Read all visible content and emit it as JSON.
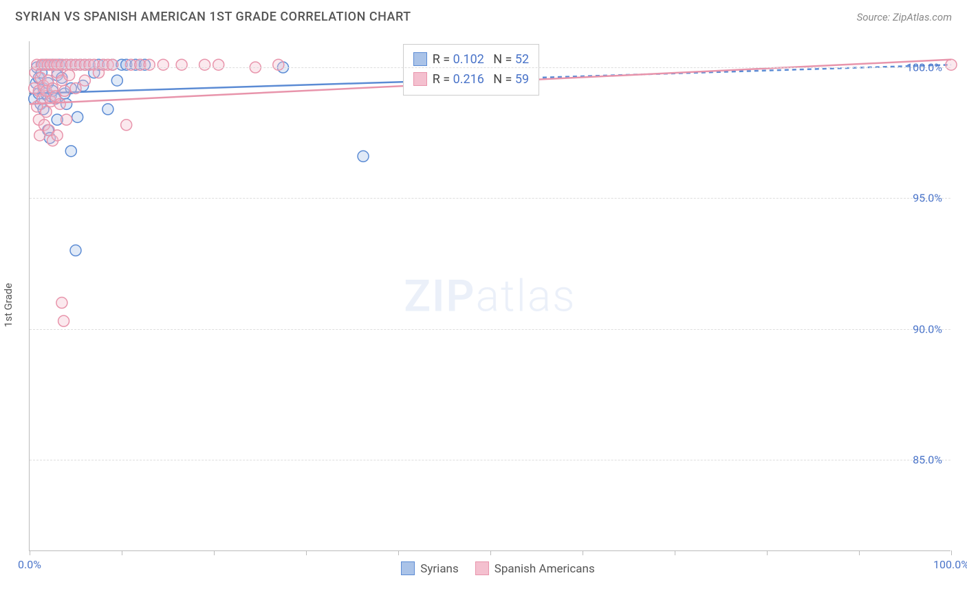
{
  "header": {
    "title": "SYRIAN VS SPANISH AMERICAN 1ST GRADE CORRELATION CHART",
    "source": "Source: ZipAtlas.com"
  },
  "watermark": {
    "zip": "ZIP",
    "atlas": "atlas"
  },
  "chart": {
    "type": "scatter",
    "ylabel": "1st Grade",
    "background_color": "#ffffff",
    "grid_color": "#dddddd",
    "axis_color": "#bbbbbb",
    "label_color": "#4a74c9",
    "text_color": "#555555",
    "title_fontsize": 18,
    "label_fontsize": 15,
    "tick_fontsize": 16,
    "xlim": [
      0,
      100
    ],
    "ylim": [
      81.5,
      101
    ],
    "xtick_positions": [
      0,
      10,
      20,
      30,
      40,
      50,
      60,
      70,
      80,
      90,
      100
    ],
    "xtick_labels": {
      "0": "0.0%",
      "100": "100.0%"
    },
    "ytick_positions": [
      85,
      90,
      95,
      100
    ],
    "ytick_labels": [
      "85.0%",
      "90.0%",
      "95.0%",
      "100.0%"
    ],
    "marker_radius": 8,
    "marker_stroke_width": 1.5,
    "marker_fill_opacity": 0.35,
    "trend_line_width": 2.5,
    "series": [
      {
        "id": "syrians",
        "label": "Syrians",
        "stroke": "#5b8bd4",
        "fill": "#aac3e8",
        "r_value": "0.102",
        "n_value": "52",
        "trend": {
          "x1": 0,
          "y1": 99.0,
          "x2": 100,
          "y2": 100.1,
          "dash_after_x": 45
        },
        "points": [
          [
            0.5,
            98.8
          ],
          [
            0.7,
            99.4
          ],
          [
            0.8,
            100.0
          ],
          [
            1.0,
            99.0
          ],
          [
            1.0,
            99.6
          ],
          [
            1.2,
            98.6
          ],
          [
            1.3,
            99.8
          ],
          [
            1.4,
            100.1
          ],
          [
            1.5,
            98.4
          ],
          [
            1.5,
            99.2
          ],
          [
            1.8,
            99.0
          ],
          [
            1.8,
            100.1
          ],
          [
            2.0,
            97.6
          ],
          [
            2.0,
            99.4
          ],
          [
            2.2,
            97.3
          ],
          [
            2.2,
            100.1
          ],
          [
            2.3,
            98.9
          ],
          [
            2.5,
            99.1
          ],
          [
            2.5,
            100.1
          ],
          [
            2.8,
            98.8
          ],
          [
            2.8,
            100.1
          ],
          [
            3.0,
            99.7
          ],
          [
            3.0,
            98.0
          ],
          [
            3.2,
            100.1
          ],
          [
            3.5,
            99.6
          ],
          [
            3.5,
            100.1
          ],
          [
            3.8,
            99.0
          ],
          [
            4.0,
            100.1
          ],
          [
            4.0,
            98.6
          ],
          [
            4.5,
            99.2
          ],
          [
            4.5,
            100.1
          ],
          [
            5.0,
            100.1
          ],
          [
            5.2,
            98.1
          ],
          [
            5.5,
            100.1
          ],
          [
            5.8,
            99.3
          ],
          [
            6.0,
            100.1
          ],
          [
            6.5,
            100.1
          ],
          [
            7.0,
            99.8
          ],
          [
            7.5,
            100.1
          ],
          [
            8.0,
            100.1
          ],
          [
            8.5,
            98.4
          ],
          [
            9.0,
            100.1
          ],
          [
            9.5,
            99.5
          ],
          [
            10.0,
            100.1
          ],
          [
            10.5,
            100.1
          ],
          [
            11.5,
            100.1
          ],
          [
            12.0,
            100.1
          ],
          [
            12.5,
            100.1
          ],
          [
            5.0,
            93.0
          ],
          [
            36.2,
            96.6
          ],
          [
            4.5,
            96.8
          ],
          [
            27.5,
            100.0
          ]
        ]
      },
      {
        "id": "spanish_americans",
        "label": "Spanish Americans",
        "stroke": "#e894ab",
        "fill": "#f4c0cf",
        "r_value": "0.216",
        "n_value": "59",
        "trend": {
          "x1": 0,
          "y1": 98.6,
          "x2": 100,
          "y2": 100.3,
          "dash_after_x": null
        },
        "points": [
          [
            0.5,
            99.2
          ],
          [
            0.6,
            99.8
          ],
          [
            0.8,
            98.5
          ],
          [
            0.8,
            100.1
          ],
          [
            1.0,
            99.1
          ],
          [
            1.0,
            98.0
          ],
          [
            1.1,
            97.4
          ],
          [
            1.2,
            99.6
          ],
          [
            1.3,
            100.1
          ],
          [
            1.4,
            98.8
          ],
          [
            1.5,
            99.3
          ],
          [
            1.6,
            97.8
          ],
          [
            1.6,
            100.1
          ],
          [
            1.8,
            99.1
          ],
          [
            1.8,
            98.3
          ],
          [
            2.0,
            100.1
          ],
          [
            2.0,
            99.5
          ],
          [
            2.1,
            97.6
          ],
          [
            2.3,
            98.7
          ],
          [
            2.3,
            100.1
          ],
          [
            2.5,
            99.2
          ],
          [
            2.5,
            97.2
          ],
          [
            2.7,
            100.1
          ],
          [
            2.8,
            98.9
          ],
          [
            3.0,
            99.8
          ],
          [
            3.0,
            97.4
          ],
          [
            3.0,
            100.1
          ],
          [
            3.3,
            98.6
          ],
          [
            3.5,
            99.5
          ],
          [
            3.5,
            100.1
          ],
          [
            3.8,
            99.1
          ],
          [
            4.0,
            100.1
          ],
          [
            4.0,
            98.0
          ],
          [
            4.3,
            99.7
          ],
          [
            4.5,
            100.1
          ],
          [
            5.0,
            99.2
          ],
          [
            5.0,
            100.1
          ],
          [
            5.5,
            100.1
          ],
          [
            6.0,
            99.5
          ],
          [
            6.0,
            100.1
          ],
          [
            6.5,
            100.1
          ],
          [
            7.0,
            100.1
          ],
          [
            7.5,
            99.8
          ],
          [
            8.0,
            100.1
          ],
          [
            8.5,
            100.1
          ],
          [
            9.0,
            100.1
          ],
          [
            10.5,
            97.8
          ],
          [
            11.0,
            100.1
          ],
          [
            12.0,
            100.1
          ],
          [
            13.0,
            100.1
          ],
          [
            14.5,
            100.1
          ],
          [
            16.5,
            100.1
          ],
          [
            19.0,
            100.1
          ],
          [
            20.5,
            100.1
          ],
          [
            24.5,
            100.0
          ],
          [
            27.0,
            100.1
          ],
          [
            3.5,
            91.0
          ],
          [
            3.7,
            90.3
          ],
          [
            100.0,
            100.1
          ]
        ]
      }
    ],
    "stats_box": {
      "left_pct": 40.5,
      "top_pct": 0.5,
      "r_label": "R =",
      "n_label": "N ="
    },
    "legend": {
      "items": [
        {
          "series": "syrians"
        },
        {
          "series": "spanish_americans"
        }
      ]
    }
  }
}
